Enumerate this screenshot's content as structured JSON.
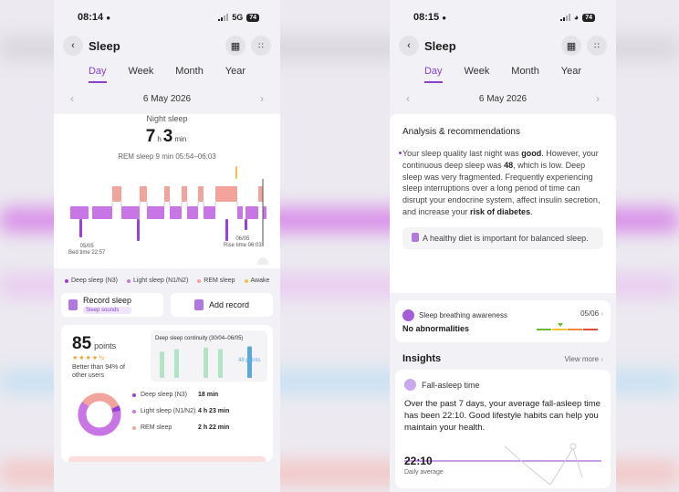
{
  "colors": {
    "accent": "#8c3fd0",
    "deep": "#9b3fd8",
    "light": "#c876e6",
    "rem": "#f2a39b",
    "awake": "#f0c24a"
  },
  "left": {
    "status": {
      "time": "08:14",
      "network": "5G",
      "battery": "74"
    },
    "title": "Sleep",
    "tabs": [
      "Day",
      "Week",
      "Month",
      "Year"
    ],
    "date": "6 May 2026",
    "night_label": "Night sleep",
    "duration": {
      "hours": "7",
      "h_unit": "h",
      "minutes": "3",
      "m_unit": "min"
    },
    "rem_line": "REM sleep 9 min 05:54–06:03",
    "hypnogram_labels": {
      "start_date": "05/05",
      "start_caption": "Bed time 22:57",
      "end_date": "06/05",
      "end_caption": "Rise time 06:03"
    },
    "legend": [
      {
        "label": "Deep sleep (N3)",
        "color": "#9b3fd8"
      },
      {
        "label": "Light sleep (N1/N2)",
        "color": "#c876e6"
      },
      {
        "label": "REM sleep",
        "color": "#f2a39b"
      },
      {
        "label": "Awake",
        "color": "#f0c24a"
      }
    ],
    "record_sleep": {
      "label": "Record sleep",
      "sub": "Sleep sounds"
    },
    "add_record": "Add record",
    "score": {
      "value": "85",
      "unit": "points",
      "stars": "★★★★½",
      "better_than": "Better than 94% of other users"
    },
    "continuity": {
      "title": "Deep sleep continuity (30/04–06/05)",
      "latest_label": "48 points",
      "values": [
        40,
        44,
        0,
        46,
        44,
        0,
        48
      ],
      "colors": [
        "#b2e3c5",
        "#b2e3c5",
        "#b2e3c5",
        "#b2e3c5",
        "#b2e3c5",
        "#b2e3c5",
        "#5aa9d8"
      ]
    },
    "stages": [
      {
        "name": "Deep sleep (N3)",
        "value": "18 min",
        "color": "#9b3fd8"
      },
      {
        "name": "Light sleep (N1/N2)",
        "value": "4 h 23 min",
        "color": "#c876e6"
      },
      {
        "name": "REM sleep",
        "value": "2 h 22 min",
        "color": "#f2a39b"
      }
    ]
  },
  "right": {
    "status": {
      "time": "08:15",
      "battery": "74"
    },
    "title": "Sleep",
    "tabs": [
      "Day",
      "Week",
      "Month",
      "Year"
    ],
    "date": "6 May 2026",
    "analysis": {
      "title": "Analysis & recommendations",
      "p1": "Your sleep quality last night was ",
      "b1": "good",
      "p2": ". However, your continuous deep sleep was ",
      "b2": "48",
      "p3": ", which is low. Deep sleep was very fragmented. Frequently experiencing sleep interruptions over a long period of time can disrupt your endocrine system, affect insulin secretion, and increase your ",
      "b3": "risk of diabetes",
      "p4": ".",
      "tip": "A healthy diet is important for balanced sleep."
    },
    "breathing": {
      "title": "Sleep breathing awareness",
      "date": "05/06",
      "value": "No abnormalities"
    },
    "insights": {
      "title": "Insights",
      "view_more": "View more"
    },
    "fall_asleep": {
      "title": "Fall-asleep time",
      "text": "Over the past 7 days, your average fall-asleep time has been 22:10. Good lifestyle habits can help you maintain your health.",
      "time": "22:10",
      "sub": "Daily average"
    }
  }
}
